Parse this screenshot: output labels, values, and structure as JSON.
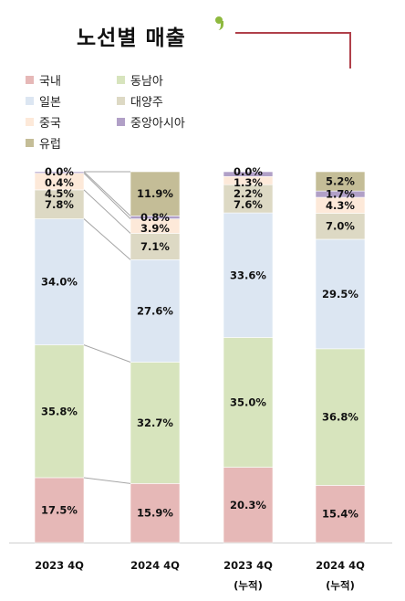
{
  "title": "노선별 매출",
  "colors": {
    "title_rule": "#b0404a",
    "title_mark": "#8eb93e",
    "connector": "#a6a6a6",
    "axis": "#cfcfcf"
  },
  "legend": [
    {
      "name": "국내",
      "color": "#e6b8b7"
    },
    {
      "name": "동남아",
      "color": "#d7e4bd"
    },
    {
      "name": "일본",
      "color": "#dce6f2"
    },
    {
      "name": "대양주",
      "color": "#ddd9c4"
    },
    {
      "name": "중국",
      "color": "#fde9d9"
    },
    {
      "name": "중앙아시아",
      "color": "#b1a0c7"
    },
    {
      "name": "유럽",
      "color": "#c4bd97"
    }
  ],
  "chart_data": {
    "type": "bar",
    "stacked": true,
    "percent_stacked": true,
    "categories": [
      [
        "2023 4Q"
      ],
      [
        "2024 4Q"
      ],
      [
        "2023 4Q",
        "(누적)"
      ],
      [
        "2024 4Q",
        "(누적)"
      ]
    ],
    "series": [
      {
        "name": "국내",
        "values": [
          17.5,
          15.9,
          20.3,
          15.4
        ],
        "labels": [
          "17.5%",
          "15.9%",
          "20.3%",
          "15.4%"
        ]
      },
      {
        "name": "동남아",
        "values": [
          35.8,
          32.7,
          35.0,
          36.8
        ],
        "labels": [
          "35.8%",
          "32.7%",
          "35.0%",
          "36.8%"
        ]
      },
      {
        "name": "일본",
        "values": [
          34.0,
          27.6,
          33.6,
          29.5
        ],
        "labels": [
          "34.0%",
          "27.6%",
          "33.6%",
          "29.5%"
        ]
      },
      {
        "name": "대양주",
        "values": [
          7.8,
          7.1,
          7.6,
          7.0
        ],
        "labels": [
          "7.8%",
          "7.1%",
          "7.6%",
          "7.0%"
        ]
      },
      {
        "name": "중국",
        "values": [
          4.5,
          3.9,
          2.2,
          4.3
        ],
        "labels": [
          "4.5%",
          "3.9%",
          "2.2%",
          "4.3%"
        ]
      },
      {
        "name": "중앙아시아",
        "values": [
          0.4,
          0.8,
          1.3,
          1.7
        ],
        "labels": [
          "0.4%",
          "0.8%",
          "1.3%",
          "1.7%"
        ]
      },
      {
        "name": "유럽",
        "values": [
          0.0,
          11.9,
          0.0,
          5.2
        ],
        "labels": [
          "0.0%",
          "11.9%",
          "0.0%",
          "5.2%"
        ]
      }
    ],
    "ylim": [
      0,
      100
    ],
    "legend_position": "top-left",
    "grid": false
  }
}
